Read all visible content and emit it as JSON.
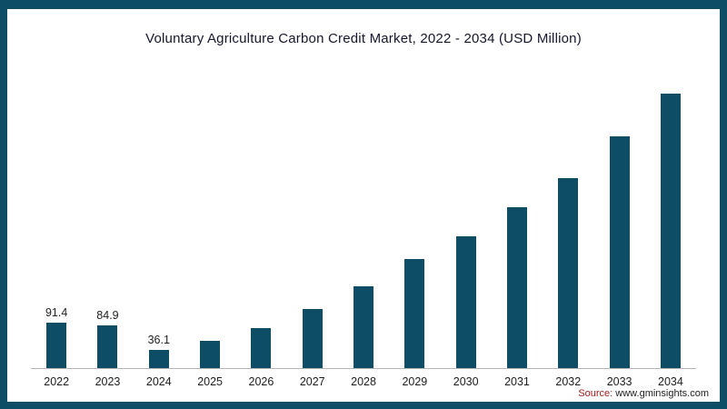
{
  "chart_data": {
    "type": "bar",
    "title": "Voluntary Agriculture Carbon Credit Market, 2022 - 2034  (USD Million)",
    "xlabel": "",
    "ylabel": "USD Million",
    "categories": [
      "2022",
      "2023",
      "2024",
      "2025",
      "2026",
      "2027",
      "2028",
      "2029",
      "2030",
      "2031",
      "2032",
      "2033",
      "2034"
    ],
    "values": [
      91.4,
      84.9,
      36.1,
      55,
      80,
      118,
      164,
      218,
      264,
      322,
      380,
      464,
      557
    ],
    "value_labels": [
      "91.4",
      "84.9",
      "36.1",
      "",
      "",
      "",
      "",
      "",
      "",
      "",
      "",
      "",
      ""
    ],
    "ylim": [
      0,
      580
    ],
    "grid": false,
    "legend": "none",
    "bar_color": "#0e4d66"
  },
  "colors": {
    "frame": "#0e4d66",
    "bar": "#0e4d66",
    "title_text": "#16162e",
    "axis_line": "#b5b5b5"
  },
  "source": {
    "prefix": "Source:",
    "url": "www.gminsights.com"
  }
}
